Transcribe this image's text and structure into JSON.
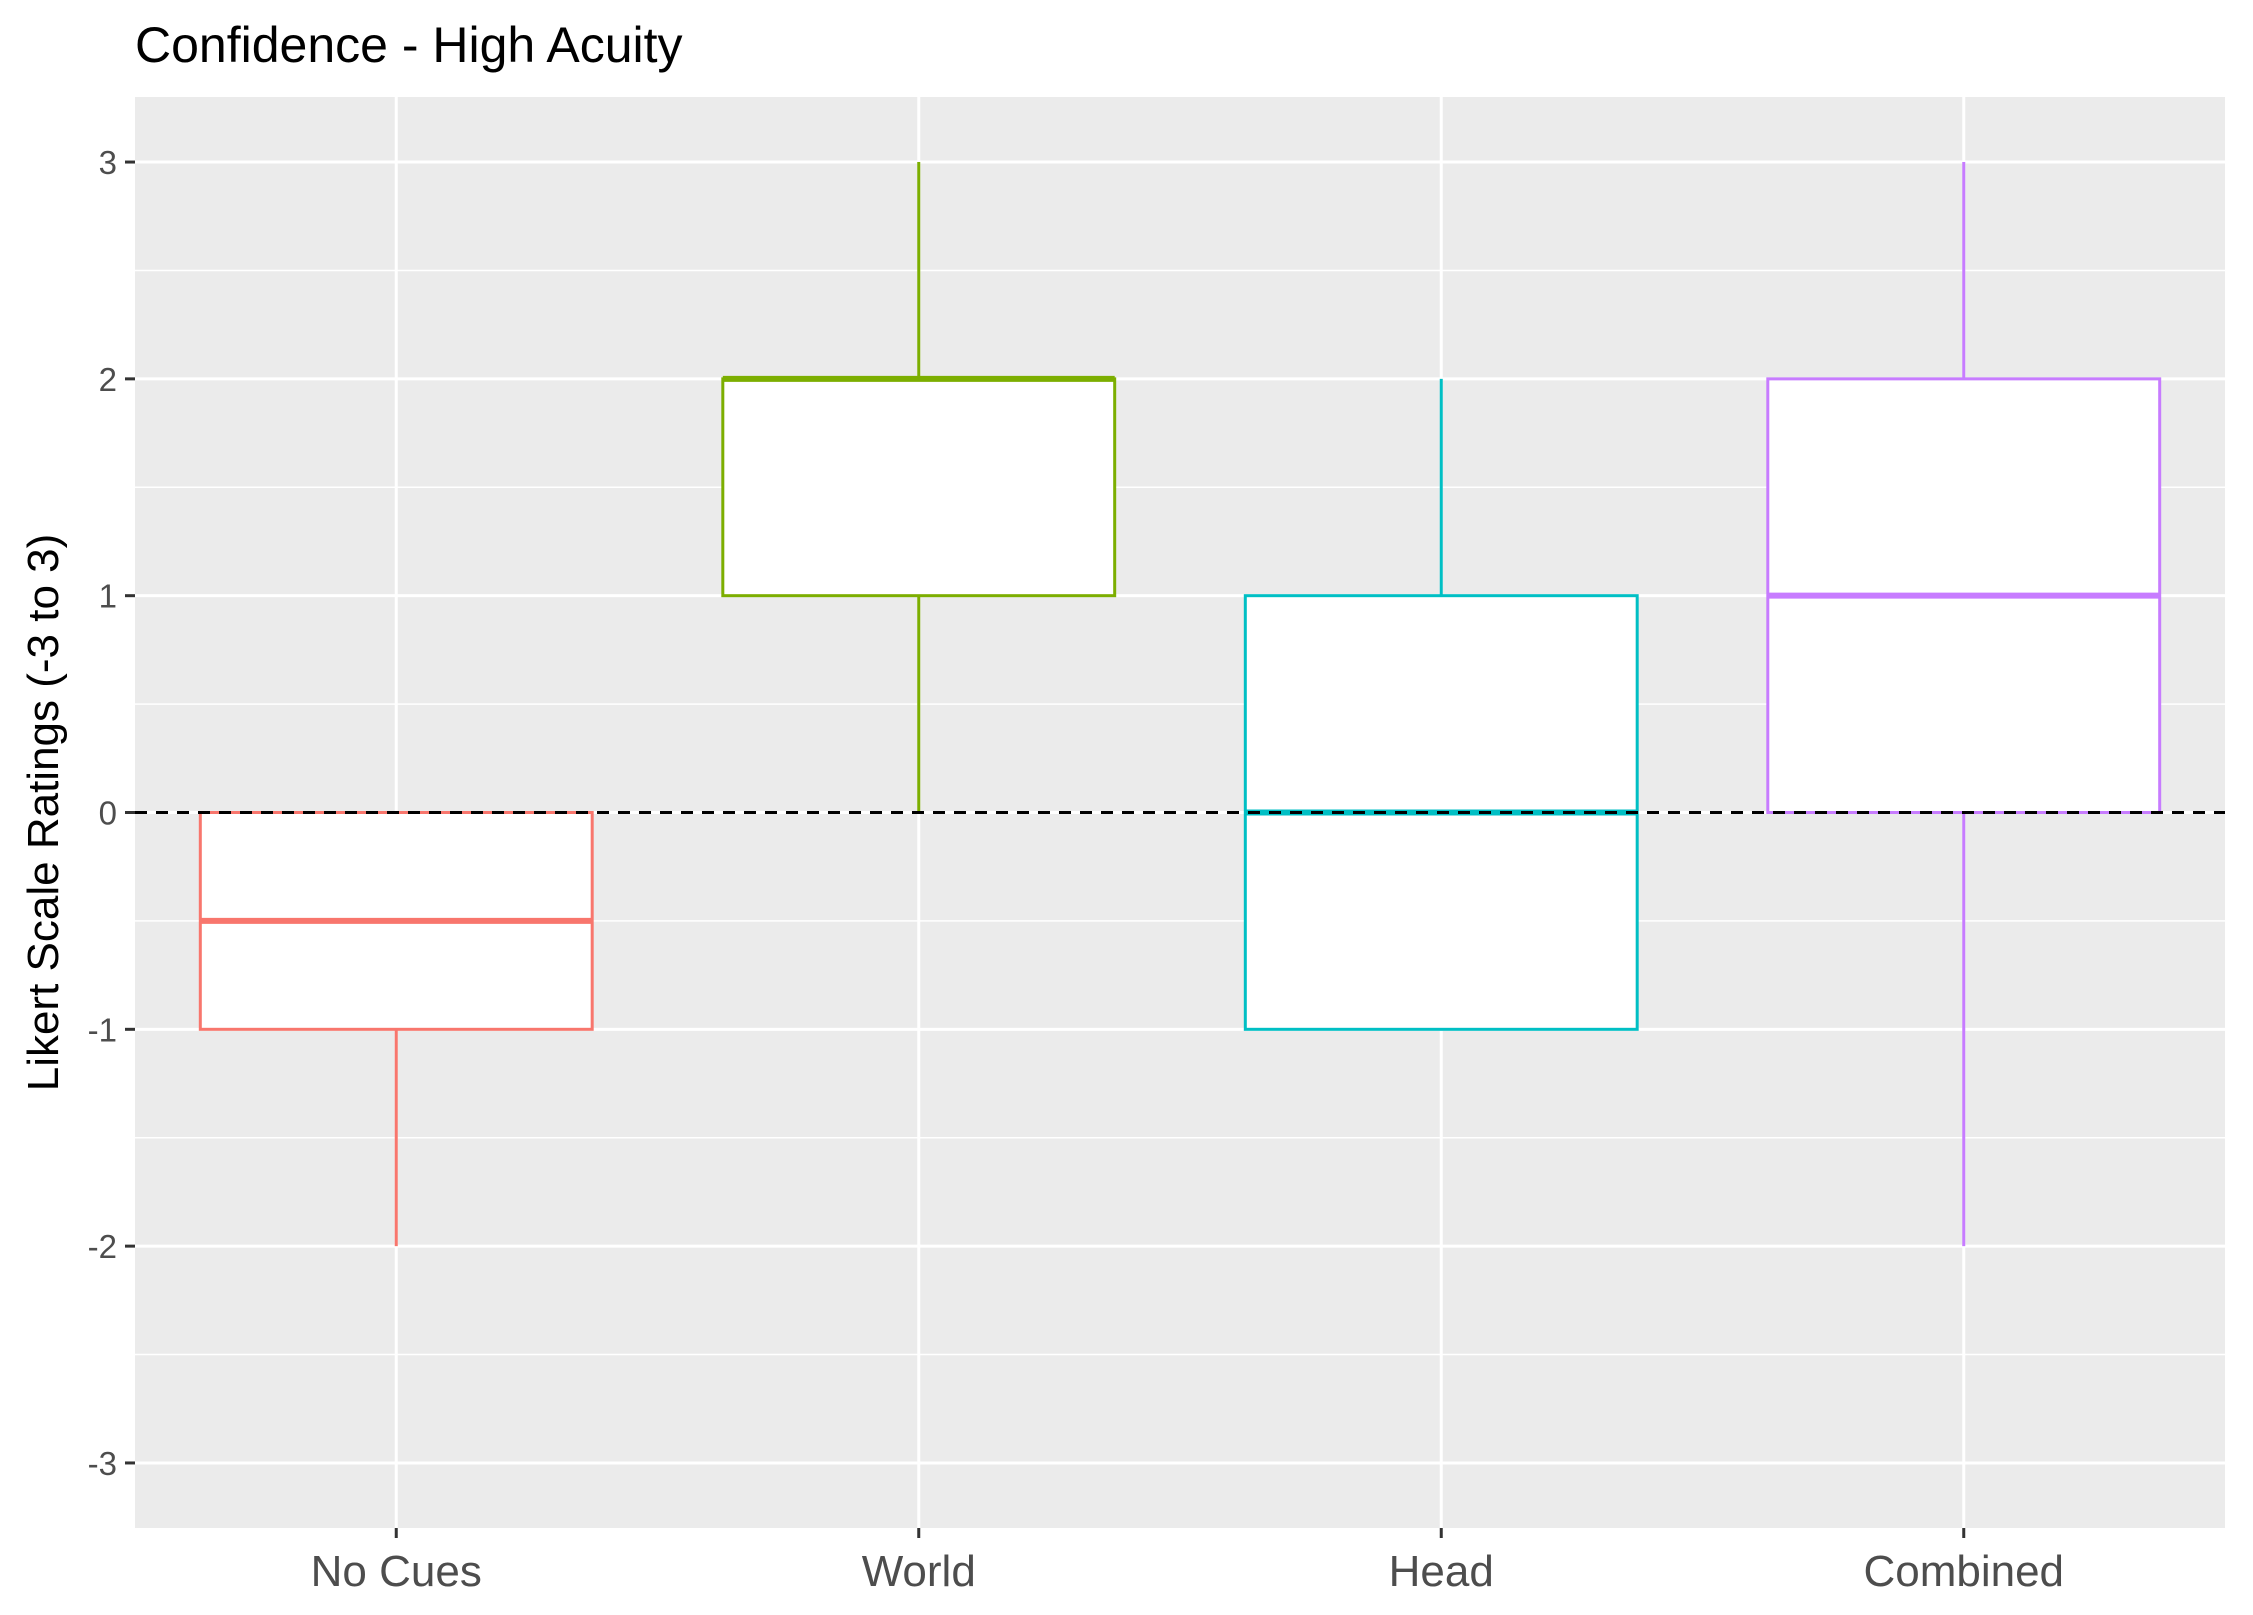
{
  "chart_data": {
    "type": "boxplot",
    "title": "Confidence - High Acuity",
    "xlabel": "",
    "ylabel": "Likert Scale Ratings (-3 to 3)",
    "ylim": [
      -3.3,
      3.3
    ],
    "y_ticks": [
      -3,
      -2,
      -1,
      0,
      1,
      2,
      3
    ],
    "grid": true,
    "legend": "none",
    "reference_line": {
      "y": 0,
      "style": "dashed",
      "color": "#000000"
    },
    "categories": [
      "No Cues",
      "World",
      "Head",
      "Combined"
    ],
    "boxes": [
      {
        "category": "No Cues",
        "min": -2,
        "q1": -1,
        "median": -0.5,
        "q3": 0,
        "max": 0,
        "color": "#F8766D"
      },
      {
        "category": "World",
        "min": 0,
        "q1": 1,
        "median": 2,
        "q3": 2,
        "max": 3,
        "color": "#7CAE00"
      },
      {
        "category": "Head",
        "min": -1,
        "q1": -1,
        "median": 0,
        "q3": 1,
        "max": 2,
        "color": "#00BFC4"
      },
      {
        "category": "Combined",
        "min": -2,
        "q1": 0,
        "median": 1,
        "q3": 2,
        "max": 3,
        "color": "#C77CFF"
      }
    ]
  }
}
